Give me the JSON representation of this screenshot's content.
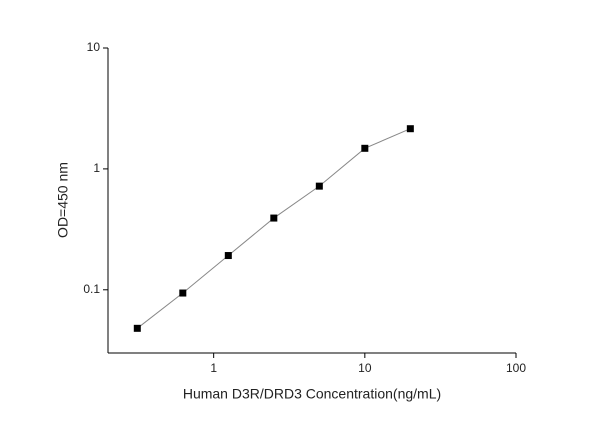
{
  "chart_data": {
    "type": "line",
    "x_label": "Human D3R/DRD3 Concentration(ng/mL)",
    "y_label": "OD=450 nm",
    "x": [
      0.3125,
      0.625,
      1.25,
      2.5,
      5,
      10,
      20
    ],
    "series": [
      {
        "color": "#000000",
        "line_color": "#888888",
        "values": [
          0.048,
          0.094,
          0.192,
          0.392,
          0.72,
          1.48,
          2.15
        ]
      }
    ],
    "xlim": [
      0.2,
      100
    ],
    "ylim": [
      0.03,
      10
    ],
    "xticks": [
      1,
      10,
      100
    ],
    "yticks": [
      0.1,
      1,
      10
    ],
    "xlog": true,
    "ylog": true,
    "grid": false
  }
}
